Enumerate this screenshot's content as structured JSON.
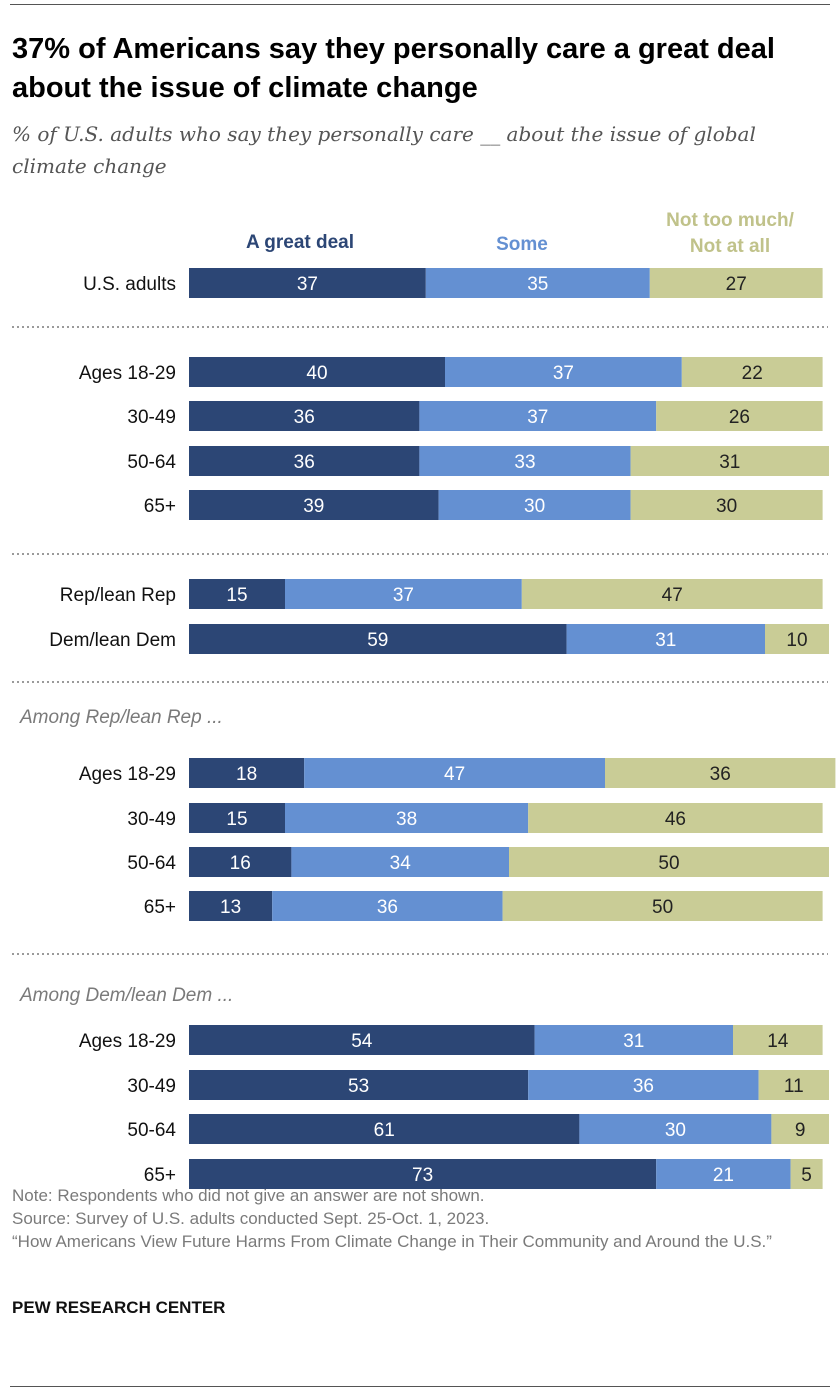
{
  "title": "37% of Americans say they personally care a great deal about the issue of climate change",
  "subtitle": "% of U.S. adults who say they personally care __ about the issue of global climate change",
  "legend": {
    "great": "A great deal",
    "some": "Some",
    "not_line1": "Not too much/",
    "not_line2": "Not at all"
  },
  "colors": {
    "great": "#2c4675",
    "some": "#6490d2",
    "not": "#c9cc96",
    "rule": "#555555",
    "dotted": "#9a9a9a",
    "muted_text": "#7a7a7a"
  },
  "chart_data": {
    "type": "bar",
    "orientation": "horizontal",
    "stacked": true,
    "xlim": [
      0,
      100
    ],
    "series": [
      {
        "name": "A great deal",
        "key": "great"
      },
      {
        "name": "Some",
        "key": "some"
      },
      {
        "name": "Not too much/Not at all",
        "key": "not"
      }
    ],
    "groups": [
      {
        "header": "",
        "rows": [
          {
            "label": "U.S. adults",
            "values": [
              37,
              35,
              27
            ]
          }
        ]
      },
      {
        "header": "",
        "rows": [
          {
            "label": "Ages 18-29",
            "values": [
              40,
              37,
              22
            ]
          },
          {
            "label": "30-49",
            "values": [
              36,
              37,
              26
            ]
          },
          {
            "label": "50-64",
            "values": [
              36,
              33,
              31
            ]
          },
          {
            "label": "65+",
            "values": [
              39,
              30,
              30
            ]
          }
        ]
      },
      {
        "header": "",
        "rows": [
          {
            "label": "Rep/lean Rep",
            "values": [
              15,
              37,
              47
            ]
          },
          {
            "label": "Dem/lean Dem",
            "values": [
              59,
              31,
              10
            ]
          }
        ]
      },
      {
        "header": "Among Rep/lean Rep ...",
        "rows": [
          {
            "label": "Ages 18-29",
            "values": [
              18,
              47,
              36
            ]
          },
          {
            "label": "30-49",
            "values": [
              15,
              38,
              46
            ]
          },
          {
            "label": "50-64",
            "values": [
              16,
              34,
              50
            ]
          },
          {
            "label": "65+",
            "values": [
              13,
              36,
              50
            ]
          }
        ]
      },
      {
        "header": "Among Dem/lean Dem ...",
        "rows": [
          {
            "label": "Ages 18-29",
            "values": [
              54,
              31,
              14
            ]
          },
          {
            "label": "30-49",
            "values": [
              53,
              36,
              11
            ]
          },
          {
            "label": "50-64",
            "values": [
              61,
              30,
              9
            ]
          },
          {
            "label": "65+",
            "values": [
              73,
              21,
              5
            ]
          }
        ]
      }
    ]
  },
  "footer": {
    "note": "Note: Respondents who did not give an answer are not shown.",
    "source": "Source: Survey of U.S. adults conducted Sept. 25-Oct. 1, 2023.",
    "report": "“How Americans View Future Harms From Climate Change in Their Community and Around the U.S.”",
    "brand": "PEW RESEARCH CENTER"
  }
}
